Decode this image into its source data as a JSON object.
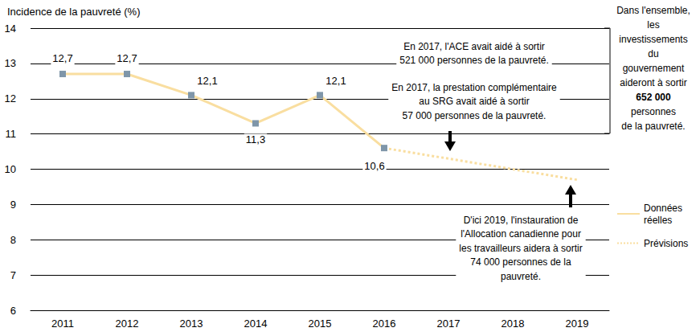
{
  "chart_data": {
    "type": "line",
    "title": "Incidence de la pauvreté (%)",
    "categories": [
      "2011",
      "2012",
      "2013",
      "2014",
      "2015",
      "2016",
      "2017",
      "2018",
      "2019"
    ],
    "series": [
      {
        "name": "Données réelles",
        "color": "#f9dea0",
        "line_style": "solid",
        "marker": "square",
        "data_labels": true,
        "values": [
          12.7,
          12.7,
          12.1,
          11.3,
          12.1,
          10.6,
          null,
          null,
          null
        ],
        "value_labels": [
          "12,7",
          "12,7",
          "12,1",
          "11,3",
          "12,1",
          "10,6",
          null,
          null,
          null
        ]
      },
      {
        "name": "Prévisions",
        "color": "#f9dea0",
        "line_style": "dotted",
        "values": [
          null,
          null,
          null,
          null,
          null,
          10.6,
          null,
          null,
          9.7
        ]
      }
    ],
    "ylim": [
      6,
      14
    ],
    "yticks": [
      6,
      7,
      8,
      9,
      10,
      11,
      12,
      13,
      14
    ],
    "grid": true,
    "legend": "right",
    "annotations": [
      {
        "text": "En 2017, l'ACE avait aidé à sortir\n521 000 personnes de la pauvreté."
      },
      {
        "text": "En 2017, la prestation complémentaire\nau SRG avait aidé à sortir\n57 000 personnes de la pauvreté."
      },
      {
        "text": "Dans l'ensemble,\nles\ninvestissements\ndu\ngouvernement\naideront à sortir\n652 000\npersonnes\nde la pauvreté.",
        "bold": "652 000"
      },
      {
        "text": "D'ici 2019, l'instauration de\nl'Allocation canadienne pour\nles travailleurs aidera à sortir\n74 000 personnes de la\npauvreté."
      }
    ]
  }
}
